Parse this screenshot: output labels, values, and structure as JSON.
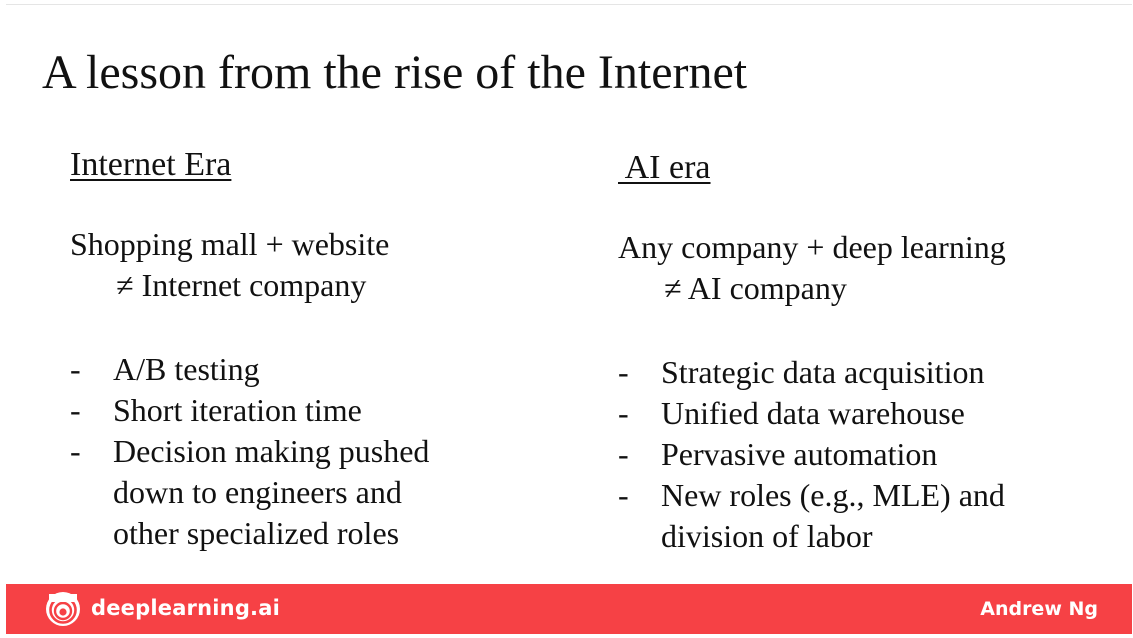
{
  "slide": {
    "title": "A lesson from the rise of the Internet",
    "left": {
      "heading": "Internet Era",
      "statement_line1": "Shopping mall + website",
      "statement_line2": "≠ Internet company",
      "bullets": [
        [
          "A/B testing"
        ],
        [
          "Short iteration time"
        ],
        [
          "Decision making pushed",
          "down to engineers and",
          "other specialized roles"
        ]
      ]
    },
    "right": {
      "heading": " AI era",
      "statement_line1": "Any company + deep learning",
      "statement_line2": "≠ AI company",
      "bullets": [
        [
          "Strategic data acquisition"
        ],
        [
          "Unified data warehouse"
        ],
        [
          "Pervasive automation"
        ],
        [
          "New roles (e.g., MLE) and",
          "division of labor"
        ]
      ]
    },
    "bullet_marker": "-"
  },
  "footer": {
    "brand": "deeplearning.ai",
    "author": "Andrew Ng",
    "logo_icon": "deeplearning-logo-icon",
    "background": "#f64145"
  }
}
